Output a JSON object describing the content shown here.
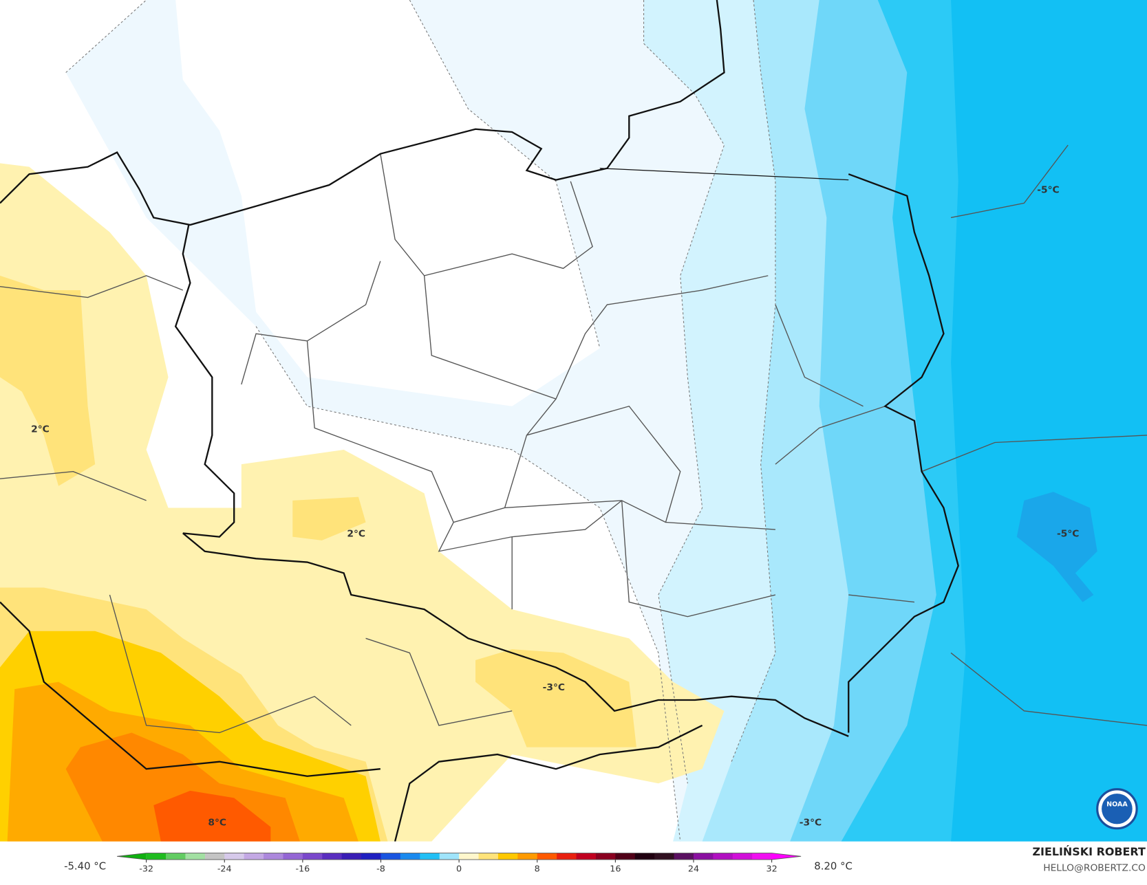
{
  "map": {
    "contour_labels": [
      "2°C",
      "2°C",
      "-3°C",
      "-5°C",
      "-5°C",
      "8°C",
      "-3°C"
    ],
    "logo_text": "NOAA"
  },
  "colorbar": {
    "min_label": "-5.40 °C",
    "max_label": "8.20 °C",
    "lim": [
      -32,
      32
    ],
    "ticks": [
      -32,
      -24,
      -16,
      -8,
      0,
      8,
      16,
      24,
      32
    ],
    "colors": [
      "#1fbb1f",
      "#62cc62",
      "#a2e0a2",
      "#c4c4c4",
      "#d6c9ea",
      "#c3a8e4",
      "#ac88dc",
      "#9466d4",
      "#7a48cb",
      "#5a2ebf",
      "#3a1eb5",
      "#2020c0",
      "#1a55e0",
      "#1a8aee",
      "#22bff5",
      "#9fe4fb",
      "#fff7cc",
      "#ffe37a",
      "#ffc800",
      "#ff9a00",
      "#ff5a00",
      "#e82010",
      "#c00020",
      "#8a0020",
      "#500018",
      "#200010",
      "#301020",
      "#5a1060",
      "#8a10a0",
      "#b010c0",
      "#d010d8",
      "#f010f0"
    ],
    "end_colors": [
      "#10b010",
      "#ff00ff"
    ]
  },
  "credits": {
    "author": "ZIELIŃSKI ROBERT",
    "email": "HELLO@ROBERTZ.CO"
  }
}
